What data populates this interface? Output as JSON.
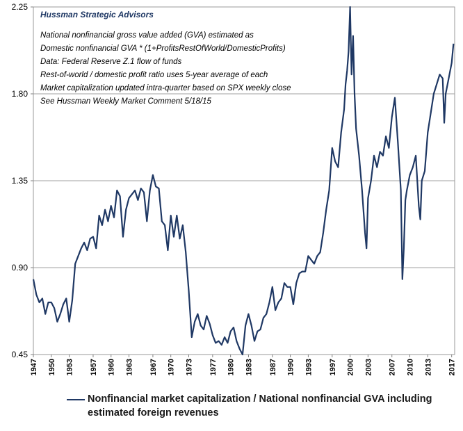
{
  "chart_data": {
    "type": "line",
    "brand": "Hussman  Strategic Advisors",
    "notes": [
      "National nonfinancial gross value added (GVA) estimated  as",
      "Domestic nonfinancial GVA  * (1+ProfitsRestOfWorld/DomesticProfits)",
      "Data: Federal Reserve Z.1 flow of funds",
      "Rest-of-world  / domestic profit ratio uses 5-year average of each",
      "Market capitalization updated intra-quarter based on SPX weekly close",
      "See Hussman Weekly Market Comment  5/18/15"
    ],
    "y_ticks": [
      "2.25",
      "1.80",
      "1.35",
      "0.90",
      "0.45"
    ],
    "y_tick_values": [
      2.25,
      1.8,
      1.35,
      0.9,
      0.45
    ],
    "ylim": [
      0.45,
      2.25
    ],
    "x_ticks": [
      "1947",
      "1950",
      "1953",
      "1957",
      "1960",
      "1963",
      "1967",
      "1970",
      "1973",
      "1977",
      "1980",
      "1983",
      "1987",
      "1990",
      "1993",
      "1997",
      "2000",
      "2003",
      "2007",
      "2010",
      "2013",
      "2017"
    ],
    "xlim": [
      1947.0,
      2017.5
    ],
    "series": [
      {
        "name": "Nonfinancial market capitalization / National nonfinancial GVA including estimated foreign revenues",
        "color": "#1f3864",
        "x": [
          1947.0,
          1947.5,
          1948.0,
          1948.5,
          1949.0,
          1949.5,
          1950.0,
          1950.5,
          1951.0,
          1951.5,
          1952.0,
          1952.5,
          1953.0,
          1953.5,
          1954.0,
          1954.5,
          1955.0,
          1955.5,
          1956.0,
          1956.5,
          1957.0,
          1957.5,
          1958.0,
          1958.5,
          1959.0,
          1959.5,
          1960.0,
          1960.5,
          1961.0,
          1961.5,
          1962.0,
          1962.5,
          1963.0,
          1963.5,
          1964.0,
          1964.5,
          1965.0,
          1965.5,
          1966.0,
          1966.5,
          1967.0,
          1967.5,
          1968.0,
          1968.5,
          1969.0,
          1969.5,
          1970.0,
          1970.5,
          1971.0,
          1971.5,
          1972.0,
          1972.5,
          1973.0,
          1973.5,
          1974.0,
          1974.5,
          1975.0,
          1975.5,
          1976.0,
          1976.5,
          1977.0,
          1977.5,
          1978.0,
          1978.5,
          1979.0,
          1979.5,
          1980.0,
          1980.5,
          1981.0,
          1981.5,
          1982.0,
          1982.5,
          1983.0,
          1983.5,
          1984.0,
          1984.5,
          1985.0,
          1985.5,
          1986.0,
          1986.5,
          1987.0,
          1987.5,
          1988.0,
          1988.5,
          1989.0,
          1989.5,
          1990.0,
          1990.5,
          1991.0,
          1991.5,
          1992.0,
          1992.5,
          1993.0,
          1993.5,
          1994.0,
          1994.5,
          1995.0,
          1995.5,
          1996.0,
          1996.5,
          1997.0,
          1997.5,
          1998.0,
          1998.5,
          1999.0,
          1999.25,
          1999.5,
          1999.75,
          2000.0,
          2000.25,
          2000.5,
          2000.75,
          2001.0,
          2001.5,
          2002.0,
          2002.5,
          2002.75,
          2003.0,
          2003.5,
          2004.0,
          2004.5,
          2005.0,
          2005.5,
          2006.0,
          2006.5,
          2007.0,
          2007.5,
          2008.0,
          2008.5,
          2008.75,
          2009.0,
          2009.25,
          2009.5,
          2010.0,
          2010.5,
          2011.0,
          2011.5,
          2011.75,
          2012.0,
          2012.5,
          2013.0,
          2013.5,
          2014.0,
          2014.5,
          2015.0,
          2015.5,
          2015.75,
          2016.0,
          2016.5,
          2017.0,
          2017.3
        ],
        "values": [
          0.84,
          0.76,
          0.72,
          0.74,
          0.66,
          0.72,
          0.72,
          0.69,
          0.62,
          0.66,
          0.71,
          0.74,
          0.62,
          0.73,
          0.92,
          0.96,
          1.0,
          1.03,
          0.99,
          1.05,
          1.06,
          1.0,
          1.17,
          1.12,
          1.2,
          1.14,
          1.22,
          1.16,
          1.3,
          1.27,
          1.06,
          1.2,
          1.26,
          1.28,
          1.3,
          1.25,
          1.31,
          1.29,
          1.14,
          1.3,
          1.38,
          1.32,
          1.31,
          1.14,
          1.12,
          0.99,
          1.17,
          1.06,
          1.17,
          1.05,
          1.12,
          0.98,
          0.78,
          0.54,
          0.62,
          0.66,
          0.6,
          0.58,
          0.65,
          0.61,
          0.55,
          0.51,
          0.52,
          0.5,
          0.54,
          0.51,
          0.57,
          0.59,
          0.52,
          0.48,
          0.45,
          0.6,
          0.66,
          0.6,
          0.52,
          0.57,
          0.58,
          0.64,
          0.66,
          0.72,
          0.8,
          0.68,
          0.72,
          0.74,
          0.82,
          0.8,
          0.8,
          0.71,
          0.82,
          0.87,
          0.88,
          0.88,
          0.96,
          0.94,
          0.92,
          0.96,
          0.98,
          1.08,
          1.2,
          1.3,
          1.52,
          1.45,
          1.42,
          1.6,
          1.72,
          1.85,
          1.92,
          2.02,
          2.27,
          1.9,
          2.1,
          1.8,
          1.62,
          1.48,
          1.3,
          1.08,
          1.0,
          1.26,
          1.35,
          1.48,
          1.42,
          1.5,
          1.48,
          1.58,
          1.52,
          1.68,
          1.78,
          1.55,
          1.3,
          0.84,
          1.0,
          1.25,
          1.3,
          1.38,
          1.42,
          1.48,
          1.22,
          1.15,
          1.35,
          1.4,
          1.6,
          1.7,
          1.8,
          1.85,
          1.9,
          1.88,
          1.65,
          1.8,
          1.88,
          1.96,
          2.06
        ]
      }
    ]
  }
}
